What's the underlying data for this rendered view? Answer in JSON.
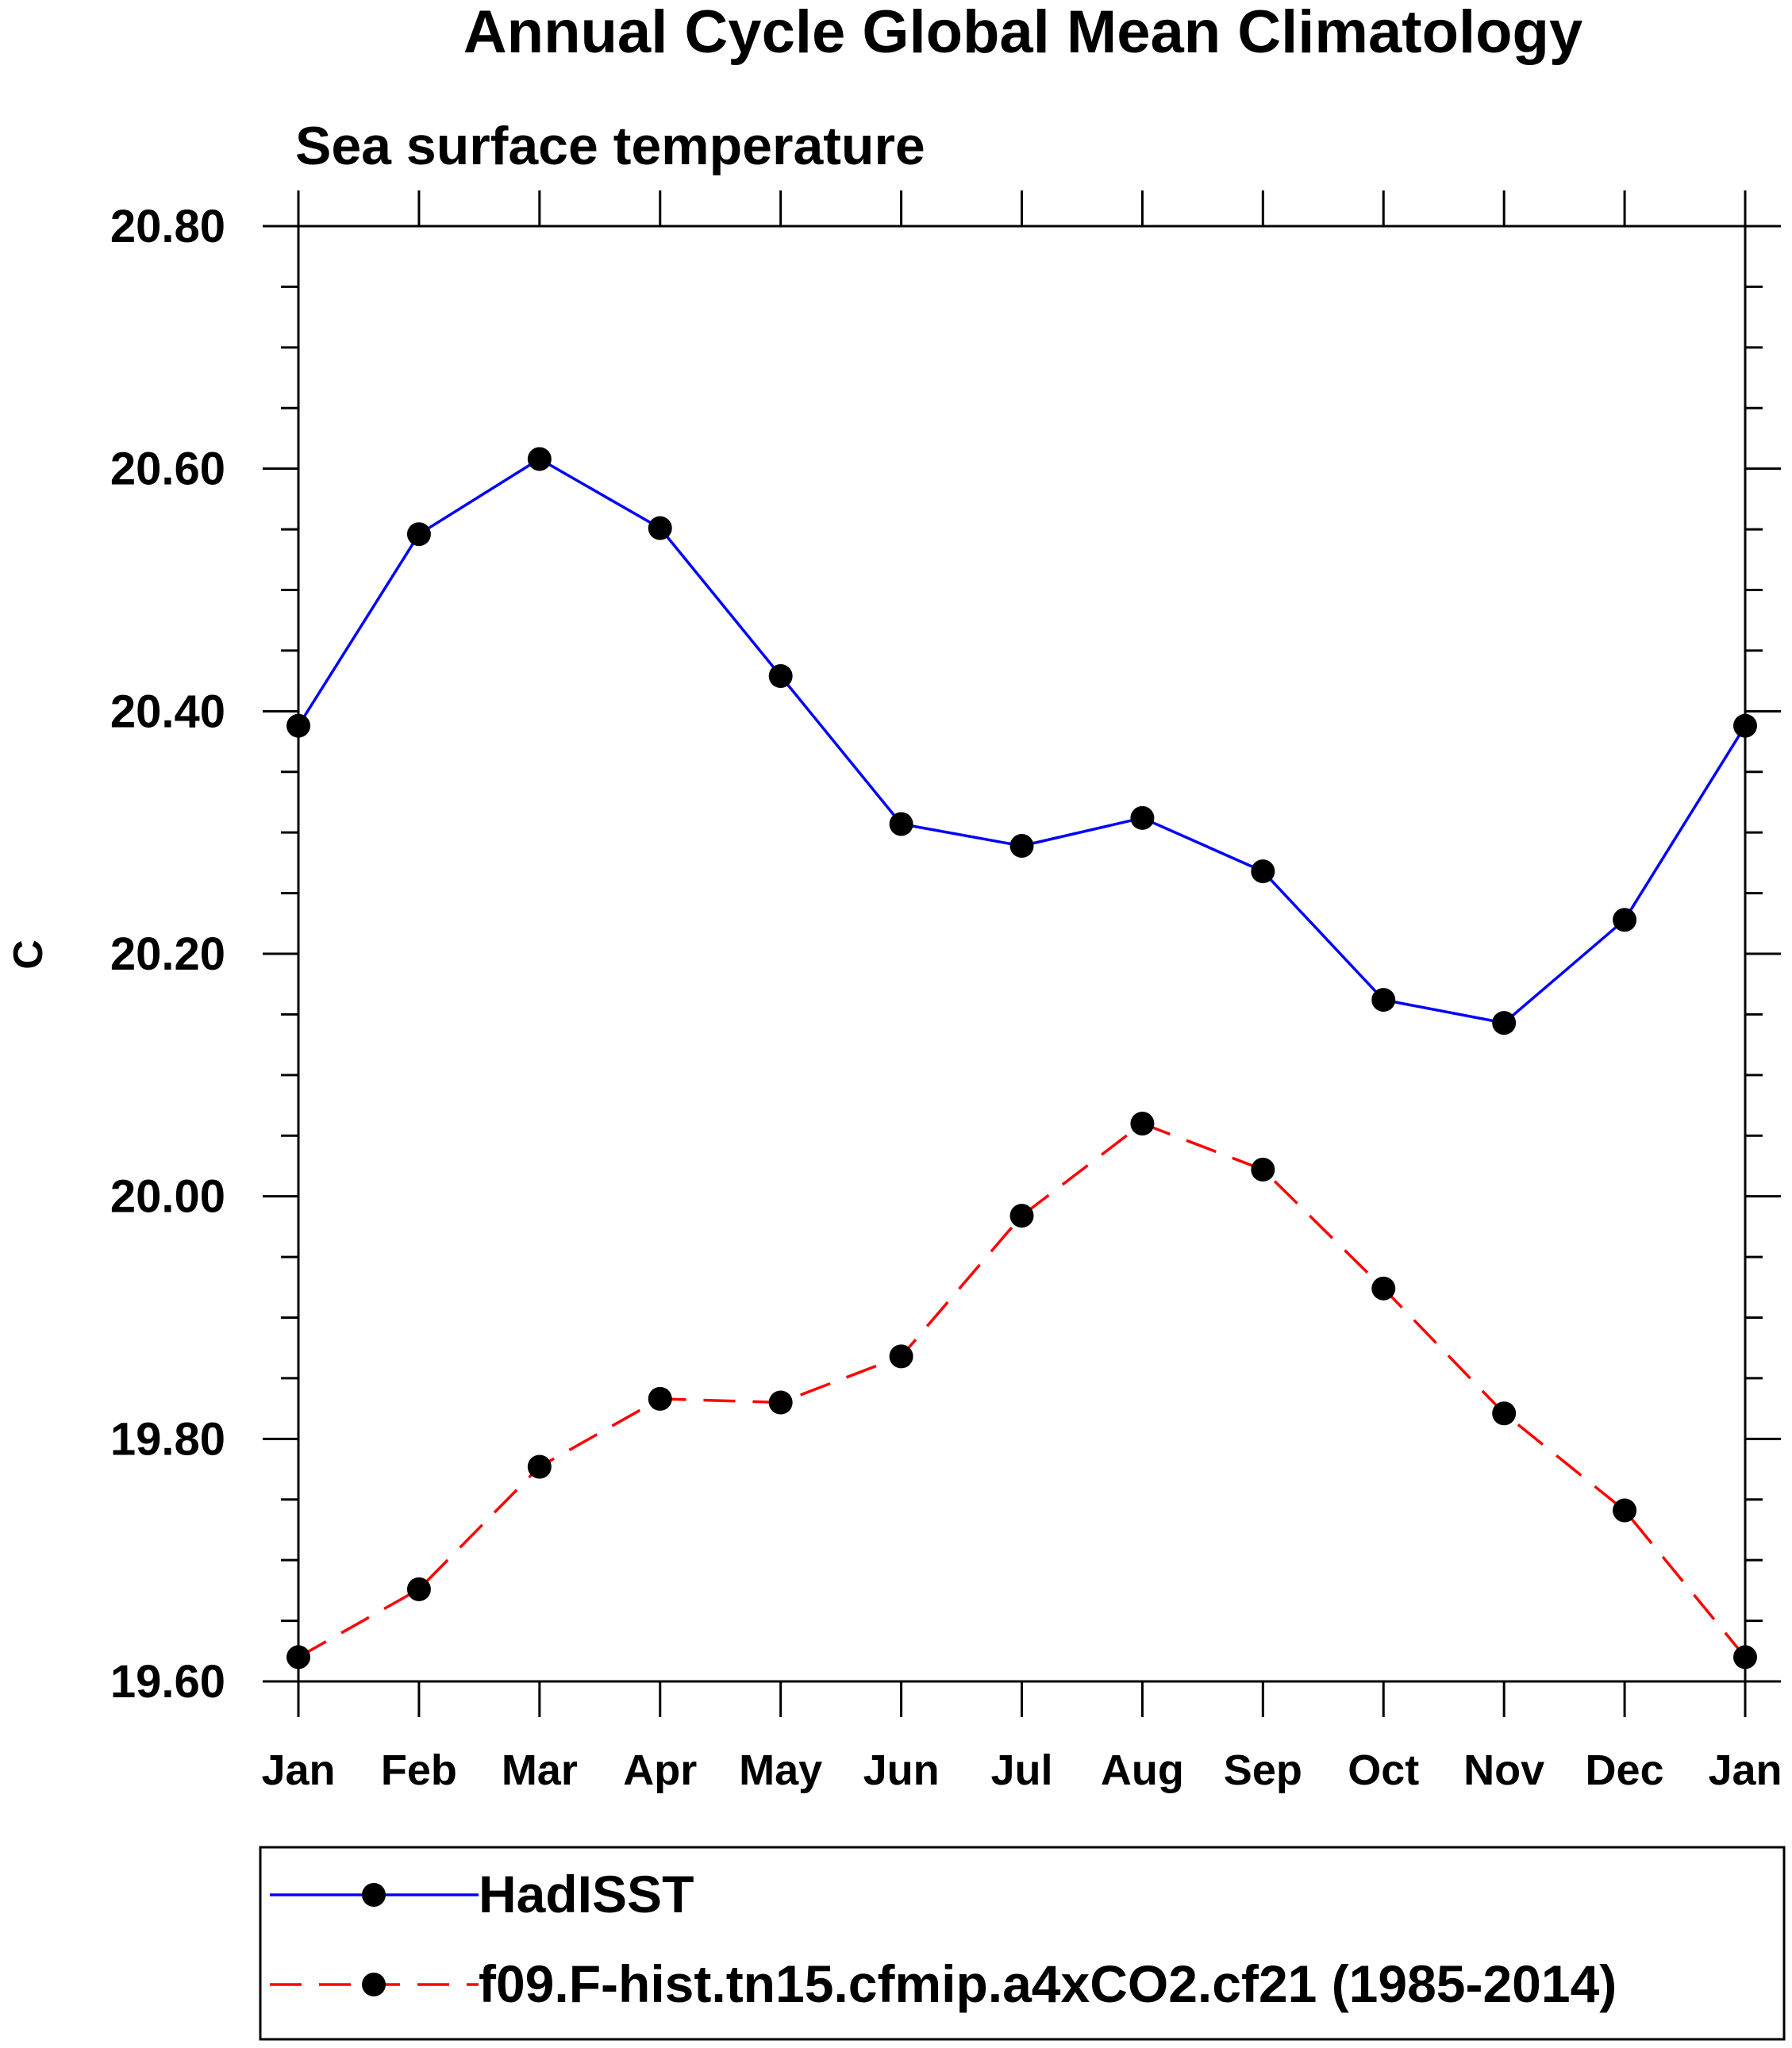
{
  "chart_data": {
    "type": "line",
    "title": "Annual Cycle Global Mean Climatology",
    "subtitle": "Sea surface temperature",
    "xlabel": "",
    "ylabel": "C",
    "categories": [
      "Jan",
      "Feb",
      "Mar",
      "Apr",
      "May",
      "Jun",
      "Jul",
      "Aug",
      "Sep",
      "Oct",
      "Nov",
      "Dec",
      "Jan"
    ],
    "ylim": [
      19.6,
      20.8
    ],
    "y_ticks": [
      "20.80",
      "20.60",
      "20.40",
      "20.20",
      "20.00",
      "19.80",
      "19.60"
    ],
    "y_tick_values": [
      20.8,
      20.6,
      20.4,
      20.2,
      20.0,
      19.8,
      19.6
    ],
    "y_minor_step": 0.05,
    "grid": false,
    "legend_position": "bottom",
    "series": [
      {
        "name": "HadISST",
        "color": "#0000ff",
        "dash": "solid",
        "marker": "filled-circle",
        "values": [
          20.388,
          20.546,
          20.608,
          20.551,
          20.429,
          20.307,
          20.289,
          20.312,
          20.268,
          20.162,
          20.143,
          20.228,
          20.388
        ]
      },
      {
        "name": "f09.F-hist.tn15.cfmip.a4xCO2.cf21 (1985-2014)",
        "color": "#ff0000",
        "dash": "dashed",
        "marker": "filled-circle",
        "values": [
          19.62,
          19.676,
          19.777,
          19.833,
          19.83,
          19.868,
          19.984,
          20.06,
          20.022,
          19.924,
          19.821,
          19.741,
          19.62
        ]
      }
    ]
  }
}
